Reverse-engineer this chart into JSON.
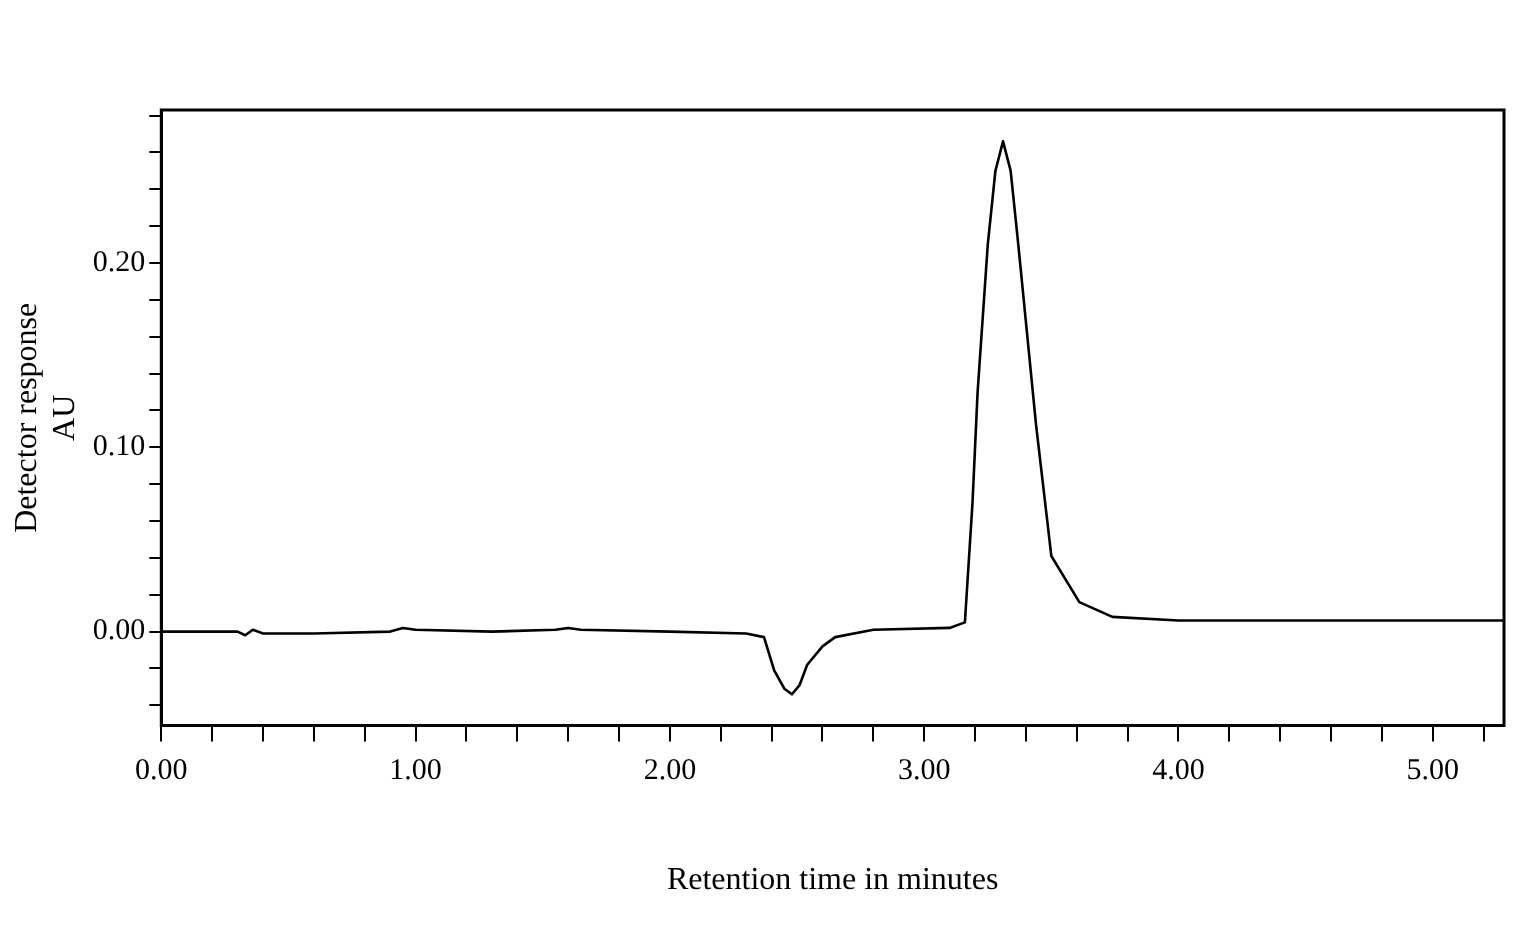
{
  "chart_data": {
    "type": "line",
    "xlabel": "Retention time in minutes",
    "ylabel": [
      "Detector response",
      "AU"
    ],
    "x": [
      0,
      0.3,
      0.33,
      0.36,
      0.4,
      0.6,
      0.9,
      0.95,
      1.0,
      1.3,
      1.55,
      1.6,
      1.65,
      2.0,
      2.3,
      2.37,
      2.41,
      2.45,
      2.48,
      2.51,
      2.54,
      2.6,
      2.65,
      2.8,
      3.1,
      3.16,
      3.19,
      3.21,
      3.25,
      3.28,
      3.31,
      3.34,
      3.37,
      3.44,
      3.5,
      3.61,
      3.74,
      4.0,
      4.5,
      5.0,
      5.28
    ],
    "series": [
      {
        "color": "#000000",
        "values": [
          0,
          0,
          -0.002,
          0.001,
          -0.001,
          -0.001,
          0,
          0.002,
          0.001,
          0,
          0.001,
          0.002,
          0.001,
          0,
          -0.001,
          -0.003,
          -0.021,
          -0.031,
          -0.034,
          -0.029,
          -0.018,
          -0.008,
          -0.003,
          0.001,
          0.002,
          0.005,
          0.07,
          0.13,
          0.21,
          0.25,
          0.266,
          0.25,
          0.21,
          0.112,
          0.041,
          0.016,
          0.008,
          0.006,
          0.006,
          0.006,
          0.006
        ]
      }
    ],
    "xlim": [
      0,
      5.28
    ],
    "xticks": [
      {
        "value": 0,
        "label": "0.00"
      },
      {
        "value": 0.2,
        "label": null
      },
      {
        "value": 0.4,
        "label": null
      },
      {
        "value": 0.6,
        "label": null
      },
      {
        "value": 0.8,
        "label": null
      },
      {
        "value": 1,
        "label": "1.00"
      },
      {
        "value": 1.2,
        "label": null
      },
      {
        "value": 1.4,
        "label": null
      },
      {
        "value": 1.6,
        "label": null
      },
      {
        "value": 1.8,
        "label": null
      },
      {
        "value": 2,
        "label": "2.00"
      },
      {
        "value": 2.2,
        "label": null
      },
      {
        "value": 2.4,
        "label": null
      },
      {
        "value": 2.6,
        "label": null
      },
      {
        "value": 2.8,
        "label": null
      },
      {
        "value": 3,
        "label": "3.00"
      },
      {
        "value": 3.2,
        "label": null
      },
      {
        "value": 3.4,
        "label": null
      },
      {
        "value": 3.6,
        "label": null
      },
      {
        "value": 3.8,
        "label": null
      },
      {
        "value": 4,
        "label": "4.00"
      },
      {
        "value": 4.2,
        "label": null
      },
      {
        "value": 4.4,
        "label": null
      },
      {
        "value": 4.6,
        "label": null
      },
      {
        "value": 4.8,
        "label": null
      },
      {
        "value": 5,
        "label": "5.00"
      },
      {
        "value": 5.2,
        "label": null
      }
    ],
    "ylim": [
      -0.051,
      0.283
    ],
    "yticks": [
      {
        "value": -0.04,
        "label": null
      },
      {
        "value": -0.02,
        "label": null
      },
      {
        "value": 0,
        "label": "0.00"
      },
      {
        "value": 0.02,
        "label": null
      },
      {
        "value": 0.04,
        "label": null
      },
      {
        "value": 0.06,
        "label": null
      },
      {
        "value": 0.08,
        "label": null
      },
      {
        "value": 0.1,
        "label": "0.10"
      },
      {
        "value": 0.12,
        "label": null
      },
      {
        "value": 0.14,
        "label": null
      },
      {
        "value": 0.16,
        "label": null
      },
      {
        "value": 0.18,
        "label": null
      },
      {
        "value": 0.2,
        "label": "0.20"
      },
      {
        "value": 0.22,
        "label": null
      },
      {
        "value": 0.24,
        "label": null
      },
      {
        "value": 0.26,
        "label": null
      },
      {
        "value": 0.28,
        "label": null
      }
    ],
    "grid": false,
    "legend": false,
    "marker": "none",
    "line_style": "solid"
  }
}
